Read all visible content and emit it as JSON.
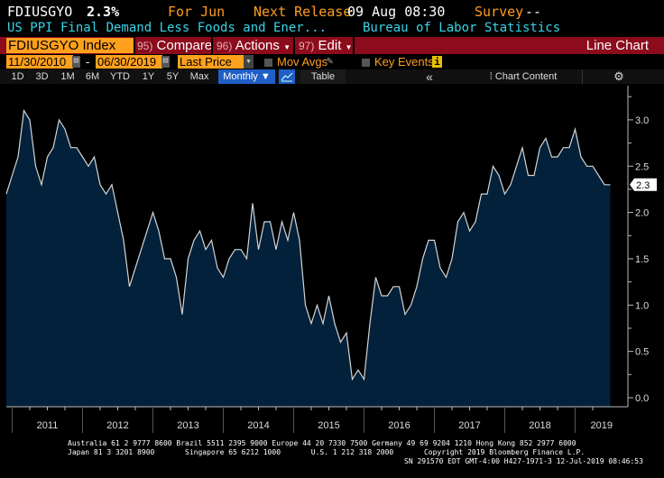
{
  "header": {
    "ticker": "FDIUSGYO",
    "last_value": "2.3%",
    "period": "For Jun",
    "next_release_label": "Next Release",
    "next_release_value": "09 Aug 08:30",
    "survey_label": "Survey",
    "survey_value": "--",
    "description": "US PPI Final Demand Less Foods and Ener...",
    "source": "Bureau of Labor Statistics"
  },
  "toolbar": {
    "security": "FDIUSGYO Index",
    "compare_num": "95)",
    "compare": "Compare",
    "actions_num": "96)",
    "actions": "Actions",
    "edit_num": "97)",
    "edit": "Edit",
    "chart_type": "Line Chart"
  },
  "controls": {
    "start_date": "11/30/2010",
    "date_sep": "-",
    "end_date": "06/30/2019",
    "field": "Last Price",
    "mov_avgs": "Mov Avgs",
    "key_events": "Key Events",
    "key_events_badge": "i"
  },
  "ranges": {
    "buttons": [
      "1D",
      "3D",
      "1M",
      "6M",
      "YTD",
      "1Y",
      "5Y",
      "Max"
    ],
    "frequency": "Monthly ▼",
    "table": "Table",
    "collapse": "«",
    "chart_content": "Chart Content",
    "settings_icon": "gear-icon"
  },
  "colors": {
    "fill": "#03213b",
    "line": "#d4d4d4",
    "toolbar": "#8c0b1c",
    "accent": "#ff9e1f",
    "cyan": "#38d3e6",
    "selected": "#1f5fc7"
  },
  "chart_data": {
    "type": "area",
    "frequency": "monthly",
    "x_start": "2010-11",
    "x_end": "2019-06",
    "values": [
      2.2,
      2.4,
      2.6,
      3.1,
      3.0,
      2.5,
      2.3,
      2.6,
      2.7,
      3.0,
      2.9,
      2.7,
      2.7,
      2.6,
      2.5,
      2.6,
      2.3,
      2.2,
      2.3,
      2.0,
      1.7,
      1.2,
      1.4,
      1.6,
      1.8,
      2.0,
      1.8,
      1.5,
      1.5,
      1.3,
      0.9,
      1.5,
      1.7,
      1.8,
      1.6,
      1.7,
      1.4,
      1.3,
      1.5,
      1.6,
      1.6,
      1.5,
      2.1,
      1.6,
      1.9,
      1.9,
      1.6,
      1.9,
      1.7,
      2.0,
      1.7,
      1.0,
      0.8,
      1.0,
      0.8,
      1.1,
      0.8,
      0.6,
      0.7,
      0.2,
      0.3,
      0.2,
      0.8,
      1.3,
      1.1,
      1.1,
      1.2,
      1.2,
      0.9,
      1.0,
      1.2,
      1.5,
      1.7,
      1.7,
      1.4,
      1.3,
      1.5,
      1.9,
      2.0,
      1.8,
      1.9,
      2.2,
      2.2,
      2.5,
      2.4,
      2.2,
      2.3,
      2.5,
      2.7,
      2.4,
      2.4,
      2.7,
      2.8,
      2.6,
      2.6,
      2.7,
      2.7,
      2.9,
      2.6,
      2.5,
      2.5,
      2.4,
      2.3,
      2.3
    ],
    "x_tick_labels": [
      "2011",
      "2012",
      "2013",
      "2014",
      "2015",
      "2016",
      "2017",
      "2018",
      "2019"
    ],
    "y_tick_labels": [
      "0.0",
      "0.5",
      "1.0",
      "1.5",
      "2.0",
      "2.5",
      "3.0"
    ],
    "ylim": [
      0,
      3.3
    ],
    "y_axis_side": "right",
    "last_value_label": "2.3",
    "grid": false,
    "legend": "none"
  },
  "footer": {
    "line1": "Australia 61 2 9777 8600 Brazil 5511 2395 9000 Europe 44 20 7330 7500 Germany 49 69 9204 1210 Hong Kong 852 2977 6000",
    "line2": "Japan 81 3 3201 8900       Singapore 65 6212 1000       U.S. 1 212 318 2000       Copyright 2019 Bloomberg Finance L.P.",
    "line3": "SN 291570 EDT  GMT-4:00 H427-1971-3 12-Jul-2019 08:46:53"
  }
}
